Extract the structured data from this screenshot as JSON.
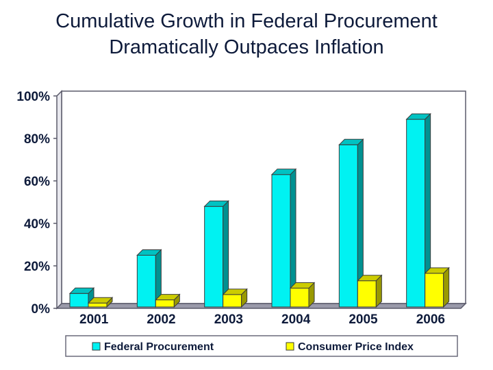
{
  "chart_data": {
    "type": "bar",
    "title": [
      "Cumulative Growth in Federal Procurement",
      "Dramatically Outpaces Inflation"
    ],
    "categories": [
      "2001",
      "2002",
      "2003",
      "2004",
      "2005",
      "2006"
    ],
    "series": [
      {
        "name": "Federal Procurement",
        "values": [
          7,
          25,
          48,
          63,
          77,
          89
        ],
        "color": "#00f2f2"
      },
      {
        "name": "Consumer Price Index",
        "values": [
          2.5,
          4,
          6.5,
          9.5,
          13,
          16.5
        ],
        "color": "#ffff00"
      }
    ],
    "ylim": [
      0,
      100
    ],
    "yticks": [
      "0%",
      "20%",
      "40%",
      "60%",
      "80%",
      "100%"
    ],
    "ytick_values": [
      0,
      20,
      40,
      60,
      80,
      100
    ],
    "grid": false,
    "legend_position": "bottom"
  }
}
